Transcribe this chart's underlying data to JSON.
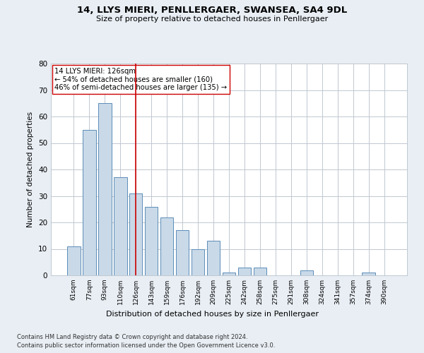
{
  "title1": "14, LLYS MIERI, PENLLERGAER, SWANSEA, SA4 9DL",
  "title2": "Size of property relative to detached houses in Penllergaer",
  "xlabel": "Distribution of detached houses by size in Penllergaer",
  "ylabel": "Number of detached properties",
  "categories": [
    "61sqm",
    "77sqm",
    "93sqm",
    "110sqm",
    "126sqm",
    "143sqm",
    "159sqm",
    "176sqm",
    "192sqm",
    "209sqm",
    "225sqm",
    "242sqm",
    "258sqm",
    "275sqm",
    "291sqm",
    "308sqm",
    "324sqm",
    "341sqm",
    "357sqm",
    "374sqm",
    "390sqm"
  ],
  "values": [
    11,
    55,
    65,
    37,
    31,
    26,
    22,
    17,
    10,
    13,
    1,
    3,
    3,
    0,
    0,
    2,
    0,
    0,
    0,
    1,
    0
  ],
  "bar_color": "#c9d9e8",
  "bar_edge_color": "#5b8db8",
  "highlight_index": 4,
  "highlight_line_color": "#cc0000",
  "annotation_text": "14 LLYS MIERI: 126sqm\n← 54% of detached houses are smaller (160)\n46% of semi-detached houses are larger (135) →",
  "annotation_box_color": "#ffffff",
  "annotation_box_edge_color": "#cc0000",
  "ylim": [
    0,
    80
  ],
  "yticks": [
    0,
    10,
    20,
    30,
    40,
    50,
    60,
    70,
    80
  ],
  "footer1": "Contains HM Land Registry data © Crown copyright and database right 2024.",
  "footer2": "Contains public sector information licensed under the Open Government Licence v3.0.",
  "background_color": "#e8eef4",
  "plot_bg_color": "#ffffff",
  "grid_color": "#c0c8d0"
}
